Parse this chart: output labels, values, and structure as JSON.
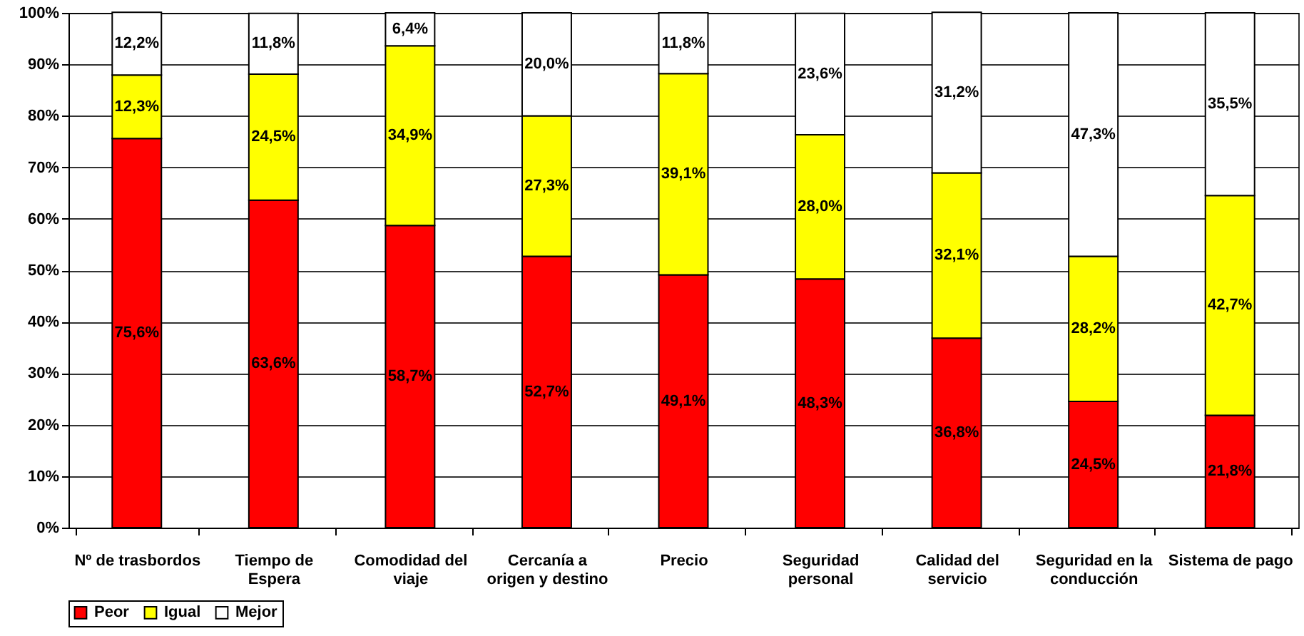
{
  "chart_data": {
    "type": "bar",
    "stacked": true,
    "categories": [
      "Nº de trasbordos",
      "Tiempo de\nEspera",
      "Comodidad del\nviaje",
      "Cercanía a\norigen y destino",
      "Precio",
      "Seguridad\npersonal",
      "Calidad del\nservicio",
      "Seguridad en la\nconducción",
      "Sistema de pago"
    ],
    "series": [
      {
        "name": "Peor",
        "color": "#ff0000",
        "values": [
          75.6,
          63.6,
          58.7,
          52.7,
          49.1,
          48.3,
          36.8,
          24.5,
          21.8
        ],
        "value_labels": [
          "75,6%",
          "63,6%",
          "58,7%",
          "52,7%",
          "49,1%",
          "48,3%",
          "36,8%",
          "24,5%",
          "21,8%"
        ]
      },
      {
        "name": "Igual",
        "color": "#ffff00",
        "values": [
          12.3,
          24.5,
          34.9,
          27.3,
          39.1,
          28.0,
          32.1,
          28.2,
          42.7
        ],
        "value_labels": [
          "12,3%",
          "24,5%",
          "34,9%",
          "27,3%",
          "39,1%",
          "28,0%",
          "32,1%",
          "28,2%",
          "42,7%"
        ]
      },
      {
        "name": "Mejor",
        "color": "#ffffff",
        "values": [
          12.2,
          11.8,
          6.4,
          20.0,
          11.8,
          23.6,
          31.2,
          47.3,
          35.5
        ],
        "value_labels": [
          "12,2%",
          "11,8%",
          "6,4%",
          "20,0%",
          "11,8%",
          "23,6%",
          "31,2%",
          "47,3%",
          "35,5%"
        ]
      }
    ],
    "ylim": [
      0,
      100
    ],
    "yticks": [
      {
        "value": 0,
        "label": "0%"
      },
      {
        "value": 10,
        "label": "10%"
      },
      {
        "value": 20,
        "label": "20%"
      },
      {
        "value": 30,
        "label": "30%"
      },
      {
        "value": 40,
        "label": "40%"
      },
      {
        "value": 50,
        "label": "50%"
      },
      {
        "value": 60,
        "label": "60%"
      },
      {
        "value": 70,
        "label": "70%"
      },
      {
        "value": 80,
        "label": "80%"
      },
      {
        "value": 90,
        "label": "90%"
      },
      {
        "value": 100,
        "label": "100%"
      }
    ],
    "grid": "y",
    "legend": "bottom"
  }
}
